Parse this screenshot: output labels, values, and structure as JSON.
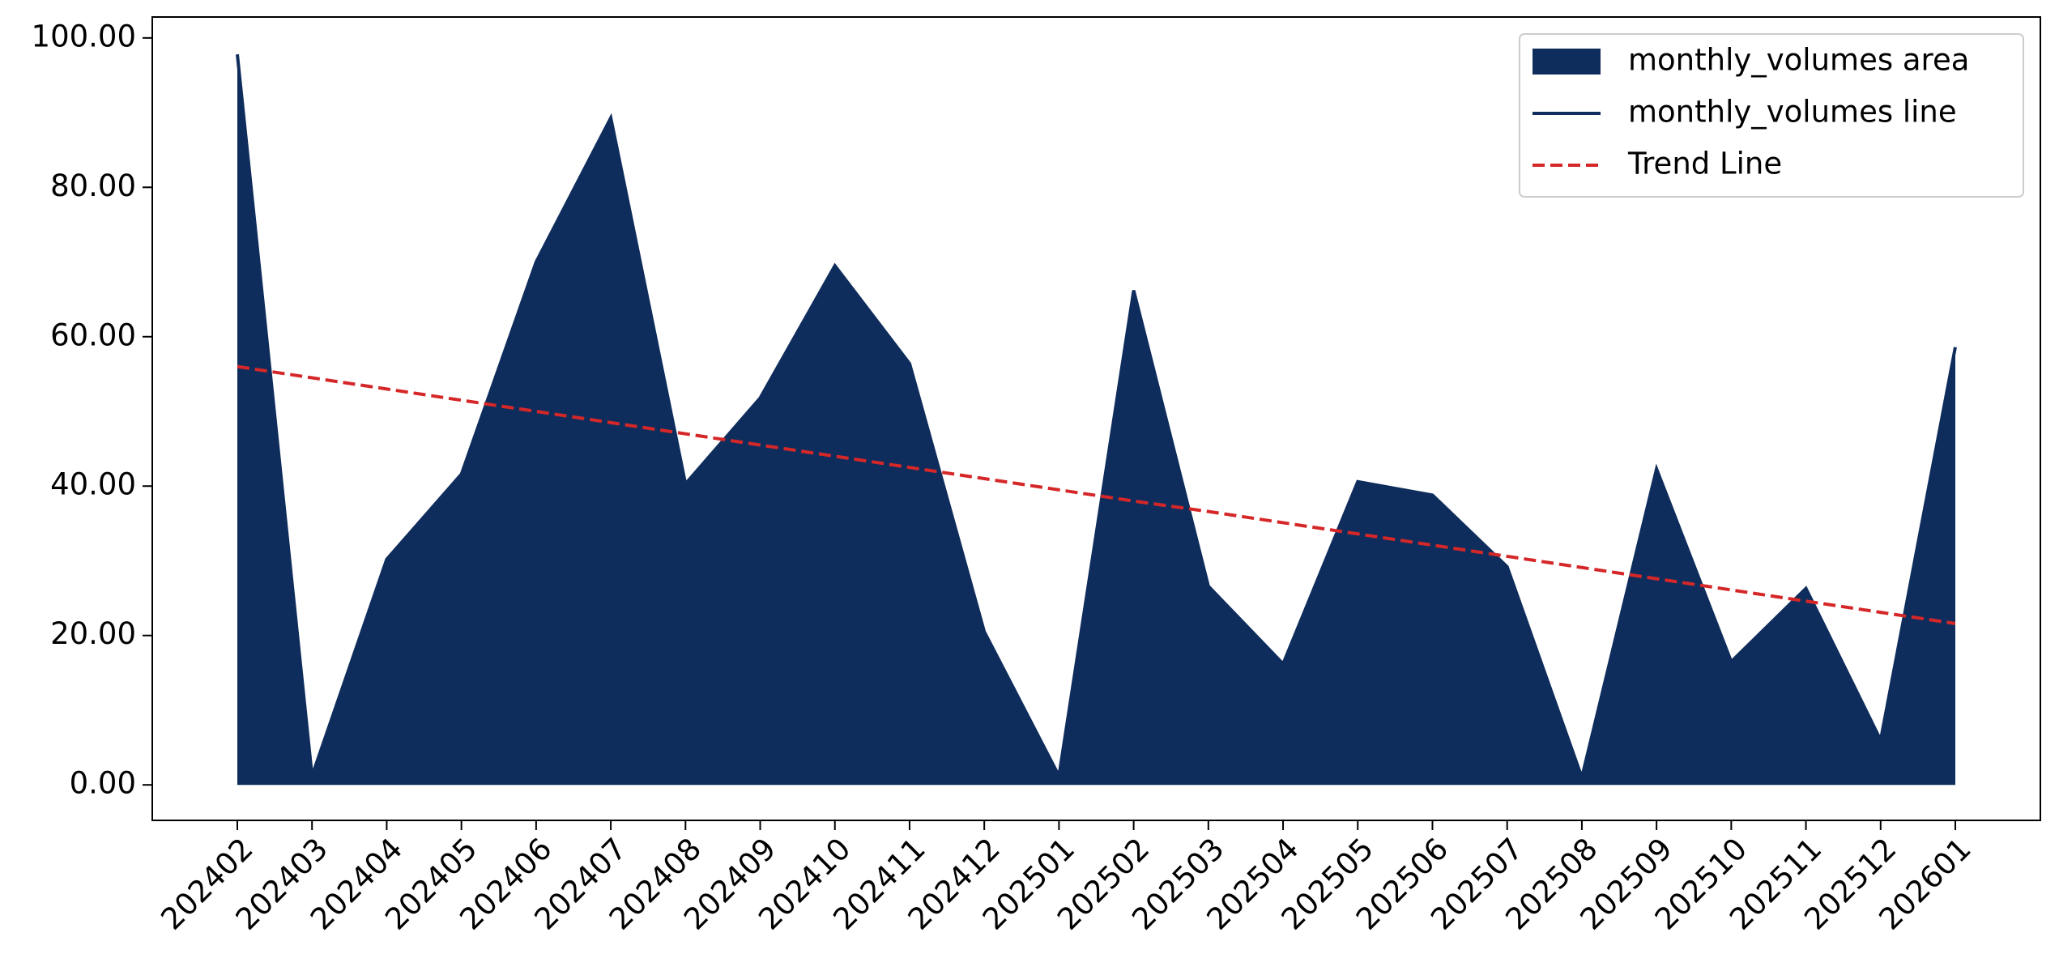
{
  "chart_data": {
    "type": "area",
    "categories": [
      "202402",
      "202403",
      "202404",
      "202405",
      "202406",
      "202407",
      "202408",
      "202409",
      "202410",
      "202411",
      "202412",
      "202501",
      "202502",
      "202503",
      "202504",
      "202505",
      "202506",
      "202507",
      "202508",
      "202509",
      "202510",
      "202511",
      "202512",
      "202601"
    ],
    "series": [
      {
        "name": "monthly_volumes area",
        "kind": "area",
        "color": "#0f2d5c",
        "values": [
          97.8,
          1.2,
          30.2,
          41.6,
          70.0,
          89.3,
          40.3,
          51.8,
          69.5,
          56.4,
          20.5,
          1.2,
          66.2,
          26.6,
          16.2,
          40.6,
          38.8,
          29.2,
          1.0,
          42.3,
          16.5,
          26.3,
          6.0,
          58.6
        ]
      },
      {
        "name": "monthly_volumes line",
        "kind": "line",
        "color": "#0f2d5c",
        "values": [
          97.8,
          1.2,
          30.2,
          41.6,
          70.0,
          89.3,
          40.3,
          51.8,
          69.5,
          56.4,
          20.5,
          1.2,
          66.2,
          26.6,
          16.2,
          40.6,
          38.8,
          29.2,
          1.0,
          42.3,
          16.5,
          26.3,
          6.0,
          58.6
        ]
      },
      {
        "name": "Trend Line",
        "kind": "dashed",
        "color": "#d62728",
        "values": [
          56.0,
          54.5,
          53.0,
          51.5,
          50.0,
          48.5,
          47.0,
          45.5,
          44.0,
          42.5,
          41.0,
          39.5,
          38.0,
          36.6,
          35.1,
          33.6,
          32.1,
          30.6,
          29.1,
          27.6,
          26.1,
          24.6,
          23.1,
          21.6
        ]
      }
    ],
    "ylim": [
      -4.75,
      102.8
    ],
    "yticks": [
      {
        "value": 0,
        "label": "0.00"
      },
      {
        "value": 20,
        "label": "20.00"
      },
      {
        "value": 40,
        "label": "40.00"
      },
      {
        "value": 60,
        "label": "60.00"
      },
      {
        "value": 80,
        "label": "80.00"
      },
      {
        "value": 100,
        "label": "100.00"
      }
    ],
    "legend": "upper right",
    "grid": false
  }
}
